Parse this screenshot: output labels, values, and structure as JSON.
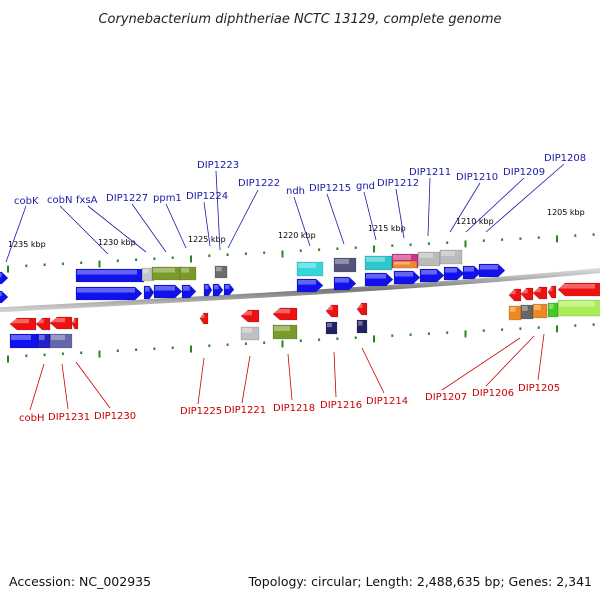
{
  "title": "Corynebacterium diphtheriae NCTC 13129, complete genome",
  "footer": {
    "accession": "Accession: NC_002935",
    "summary": "Topology: circular; Length: 2,488,635 bp; Genes: 2,341"
  },
  "colors": {
    "forward_label": "#1a1aa6",
    "reverse_label": "#cc0000",
    "forward_gene": "#1111ee",
    "reverse_gene": "#ee1111",
    "tick": "#228822",
    "backbone": "#888888"
  },
  "scale_labels": [
    "1235 kbp",
    "1230 kbp",
    "1225 kbp",
    "1220 kbp",
    "1215 kbp",
    "1210 kbp",
    "1205 kbp"
  ],
  "forward_labels": [
    "cobK",
    "cobN",
    "fxsA",
    "DIP1227",
    "ppm1",
    "DIP1224",
    "DIP1223",
    "DIP1222",
    "ndh",
    "DIP1215",
    "gnd",
    "DIP1212",
    "DIP1211",
    "DIP1210",
    "DIP1209",
    "DIP1208"
  ],
  "reverse_labels": [
    "cobH",
    "DIP1231",
    "DIP1230",
    "DIP1225",
    "DIP1221",
    "DIP1218",
    "DIP1216",
    "DIP1214",
    "DIP1207",
    "DIP1206",
    "DIP1205"
  ]
}
